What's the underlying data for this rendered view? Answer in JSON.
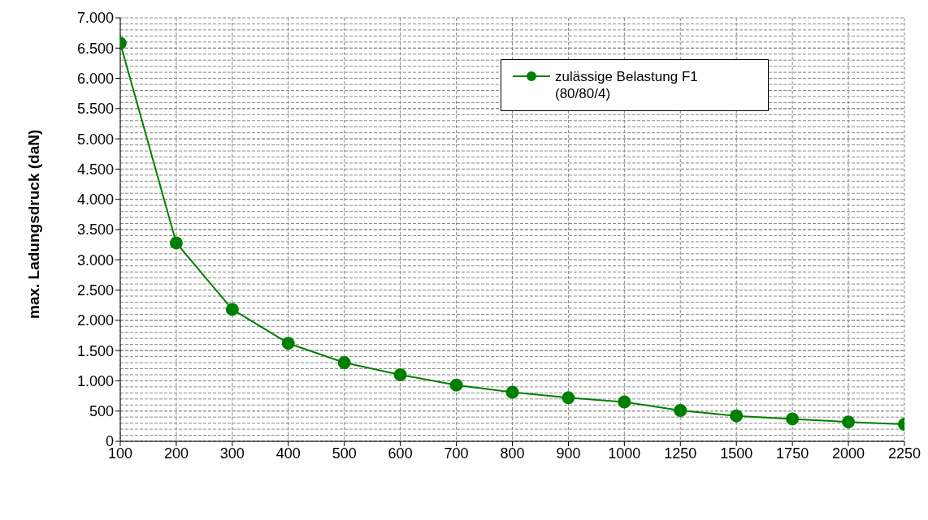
{
  "chart_data": {
    "type": "line",
    "ylabel": "max. Ladungsdruck (daN)",
    "categories": [
      "100",
      "200",
      "300",
      "400",
      "500",
      "600",
      "700",
      "800",
      "900",
      "1000",
      "1250",
      "1500",
      "1750",
      "2000",
      "2250"
    ],
    "series": [
      {
        "name": "zulässige Belastung F1 (80/80/4)",
        "color": "#008000",
        "values": [
          6580,
          3280,
          2180,
          1620,
          1300,
          1100,
          930,
          810,
          720,
          650,
          510,
          420,
          370,
          320,
          280
        ]
      }
    ],
    "ylim": [
      0,
      7000
    ],
    "yticks": [
      {
        "value": 0,
        "label": "0"
      },
      {
        "value": 500,
        "label": "500"
      },
      {
        "value": 1000,
        "label": "1.000"
      },
      {
        "value": 1500,
        "label": "1.500"
      },
      {
        "value": 2000,
        "label": "2.000"
      },
      {
        "value": 2500,
        "label": "2.500"
      },
      {
        "value": 3000,
        "label": "3.000"
      },
      {
        "value": 3500,
        "label": "3.500"
      },
      {
        "value": 4000,
        "label": "4.000"
      },
      {
        "value": 4500,
        "label": "4.500"
      },
      {
        "value": 5000,
        "label": "5.000"
      },
      {
        "value": 5500,
        "label": "5.500"
      },
      {
        "value": 6000,
        "label": "6.000"
      },
      {
        "value": 6500,
        "label": "6.500"
      },
      {
        "value": 7000,
        "label": "7.000"
      }
    ],
    "grid": true,
    "legend": "top right",
    "marker": "circle",
    "line_style": "solid"
  }
}
